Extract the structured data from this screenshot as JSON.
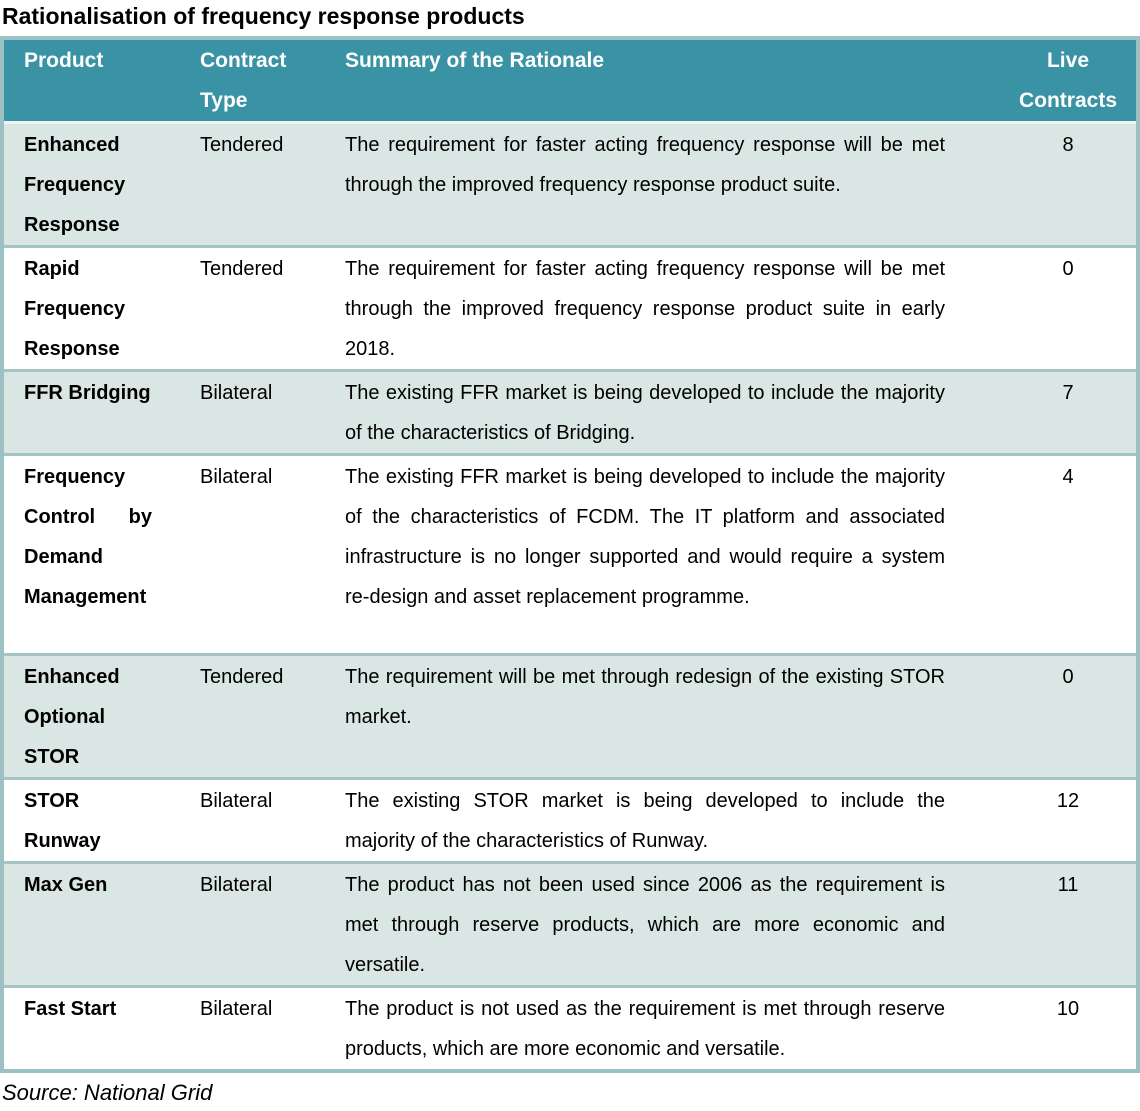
{
  "title": "Rationalisation of frequency response products",
  "source": "Source: National Grid",
  "colors": {
    "header_bg": "#3A93A4",
    "header_text": "#FFFFFF",
    "row_alt_bg": "#D9E6E3",
    "row_bg": "#FFFFFF",
    "frame_border": "#9CC1C2",
    "row_divider": "#A5C4C3",
    "header_divider": "#F0F5F4",
    "text_color": "#000000"
  },
  "table": {
    "headers": [
      "Product",
      "Contract Type",
      "Summary of the Rationale",
      "Live Contracts"
    ],
    "rows": [
      {
        "product": "Enhanced Frequency Response",
        "contract_type": "Tendered",
        "summary": "The requirement for faster acting frequency response will be met through the improved frequency response product suite.",
        "live_contracts": "8"
      },
      {
        "product": "Rapid Frequency Response",
        "contract_type": "Tendered",
        "summary": "The requirement for faster acting frequency response will be met through the improved frequency response product suite in early 2018.",
        "live_contracts": "0"
      },
      {
        "product": "FFR Bridging",
        "contract_type": "Bilateral",
        "summary": "The existing FFR market is being developed to include the majority of the characteristics of Bridging.",
        "live_contracts": "7"
      },
      {
        "product": "Frequency Control by Demand Management",
        "contract_type": "Bilateral",
        "summary": "The existing FFR market is being developed to include the majority of the characteristics of FCDM.  The IT platform and associated infrastructure is no longer supported and would require a system re-design and asset replacement programme.",
        "live_contracts": "4"
      },
      {
        "product": "Enhanced Optional STOR",
        "contract_type": "Tendered",
        "summary": "The requirement will be met through redesign of the existing STOR market.",
        "live_contracts": "0"
      },
      {
        "product": "STOR Runway",
        "contract_type": "Bilateral",
        "summary": "The existing STOR market is being developed to include the majority of the characteristics of Runway.",
        "live_contracts": "12"
      },
      {
        "product": "Max Gen",
        "contract_type": "Bilateral",
        "summary": "The product has not been used since 2006 as the requirement is met through reserve products, which are more economic and versatile.",
        "live_contracts": "11"
      },
      {
        "product": "Fast Start",
        "contract_type": "Bilateral",
        "summary": "The product is not used as the requirement is met through reserve products, which are more economic and versatile.",
        "live_contracts": "10"
      }
    ]
  }
}
